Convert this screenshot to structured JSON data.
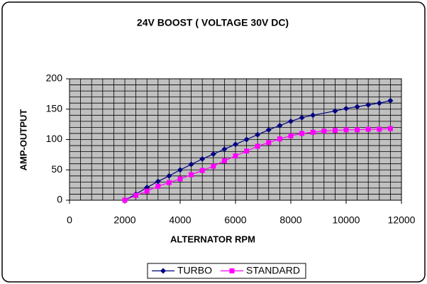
{
  "chart_data": {
    "type": "line",
    "title": "24V BOOST  ( VOLTAGE 30V DC)",
    "x_label": "ALTERNATOR RPM",
    "y_label": "AMP-OUTPUT",
    "xlim": [
      0,
      12000
    ],
    "xticks": [
      0,
      2000,
      4000,
      6000,
      8000,
      10000,
      12000
    ],
    "ylim": [
      0,
      200
    ],
    "yticks": [
      0,
      50,
      100,
      150,
      200
    ],
    "grid": true,
    "x_minor_step": 400,
    "y_minor_step": 10,
    "plot_background": "#c0c0c0",
    "legend": "bottom",
    "series": [
      {
        "name": "TURBO",
        "color": "#000080",
        "marker": "diamond",
        "x": [
          2000,
          2400,
          2800,
          3200,
          3600,
          4000,
          4400,
          4800,
          5200,
          5600,
          6000,
          6400,
          6800,
          7200,
          7600,
          8000,
          8400,
          8800,
          9600,
          10000,
          10400,
          10800,
          11200,
          11600
        ],
        "values": [
          0,
          10,
          21,
          31,
          40,
          50,
          59,
          68,
          76,
          84,
          92,
          100,
          108,
          116,
          123,
          130,
          136,
          140,
          147,
          151,
          154,
          157,
          160,
          164
        ]
      },
      {
        "name": "STANDARD",
        "color": "#ff00ff",
        "marker": "square",
        "x": [
          2000,
          2400,
          2800,
          3200,
          3600,
          4000,
          4400,
          4800,
          5200,
          5600,
          6000,
          6400,
          6800,
          7200,
          7600,
          8000,
          8400,
          8800,
          9200,
          9600,
          10000,
          10400,
          10800,
          11200,
          11600
        ],
        "values": [
          0,
          8,
          15,
          23,
          29,
          35,
          42,
          49,
          56,
          65,
          73,
          81,
          89,
          95,
          101,
          106,
          110,
          112,
          114,
          115,
          116,
          116,
          117,
          117,
          118
        ]
      }
    ]
  }
}
